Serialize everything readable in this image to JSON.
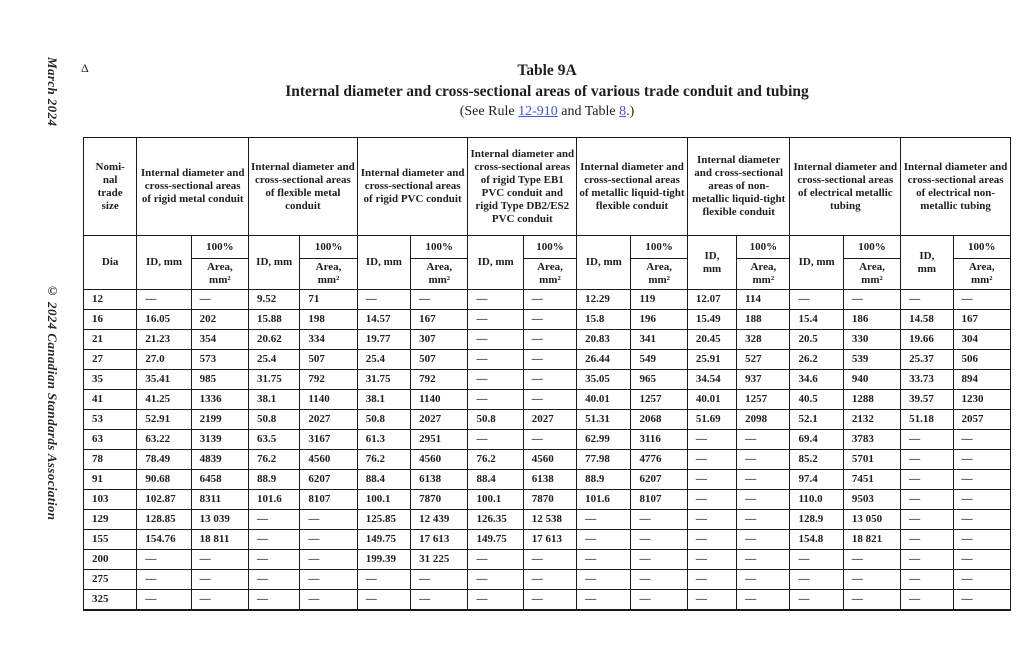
{
  "margins": {
    "date_text": "March 2024",
    "copyright_text": "© 2024 Canadian Standards Association",
    "delta_marker": "Δ"
  },
  "title": {
    "line1": "Table 9A",
    "line2": "Internal diameter and cross-sectional areas of various trade conduit and tubing",
    "see_prefix": "(See Rule ",
    "rule_link": "12-910",
    "see_middle": " and Table ",
    "table_link": "8",
    "see_suffix": ".)"
  },
  "colors": {
    "link": "#4453dd",
    "text": "#1f1f1f",
    "border": "#1a1a1a",
    "background": "#ffffff"
  },
  "table": {
    "corner_header": "Nomi-\nnal\ntrade\nsize",
    "dia_header": "Dia",
    "pct_label": "100%",
    "area_label": "Area,\nmm²",
    "groups": [
      {
        "label": "Internal diameter and cross-sectional areas of rigid metal conduit",
        "id_label": "ID, mm"
      },
      {
        "label": "Internal diameter and cross-sectional areas of flexible metal conduit",
        "id_label": "ID, mm"
      },
      {
        "label": "Internal diameter and cross-sectional areas of rigid PVC conduit",
        "id_label": "ID, mm"
      },
      {
        "label": "Internal diameter and cross-sectional areas of rigid Type EB1 PVC conduit and rigid Type DB2/ES2 PVC conduit",
        "id_label": "ID, mm"
      },
      {
        "label": "Internal diameter and cross-sectional areas of metallic liquid-tight flexible conduit",
        "id_label": "ID, mm"
      },
      {
        "label": "Internal diameter and cross-sectional areas of non-metallic liquid-tight flexible conduit",
        "id_label": "ID,\nmm"
      },
      {
        "label": "Internal diameter and cross-sectional areas of electrical metallic tubing",
        "id_label": "ID, mm"
      },
      {
        "label": "Internal diameter and cross-sectional areas of electrical non-metallic tubing",
        "id_label": "ID,\nmm"
      }
    ],
    "rows": [
      {
        "dia": "12",
        "cells": [
          "—",
          "—",
          "9.52",
          "71",
          "—",
          "—",
          "—",
          "—",
          "12.29",
          "119",
          "12.07",
          "114",
          "—",
          "—",
          "—",
          "—"
        ]
      },
      {
        "dia": "16",
        "cells": [
          "16.05",
          "202",
          "15.88",
          "198",
          "14.57",
          "167",
          "—",
          "—",
          "15.8",
          "196",
          "15.49",
          "188",
          "15.4",
          "186",
          "14.58",
          "167"
        ]
      },
      {
        "dia": "21",
        "cells": [
          "21.23",
          "354",
          "20.62",
          "334",
          "19.77",
          "307",
          "—",
          "—",
          "20.83",
          "341",
          "20.45",
          "328",
          "20.5",
          "330",
          "19.66",
          "304"
        ]
      },
      {
        "dia": "27",
        "cells": [
          "27.0",
          "573",
          "25.4",
          "507",
          "25.4",
          "507",
          "—",
          "—",
          "26.44",
          "549",
          "25.91",
          "527",
          "26.2",
          "539",
          "25.37",
          "506"
        ]
      },
      {
        "dia": "35",
        "cells": [
          "35.41",
          "985",
          "31.75",
          "792",
          "31.75",
          "792",
          "—",
          "—",
          "35.05",
          "965",
          "34.54",
          "937",
          "34.6",
          "940",
          "33.73",
          "894"
        ]
      },
      {
        "dia": "41",
        "cells": [
          "41.25",
          "1336",
          "38.1",
          "1140",
          "38.1",
          "1140",
          "—",
          "—",
          "40.01",
          "1257",
          "40.01",
          "1257",
          "40.5",
          "1288",
          "39.57",
          "1230"
        ]
      },
      {
        "dia": "53",
        "cells": [
          "52.91",
          "2199",
          "50.8",
          "2027",
          "50.8",
          "2027",
          "50.8",
          "2027",
          "51.31",
          "2068",
          "51.69",
          "2098",
          "52.1",
          "2132",
          "51.18",
          "2057"
        ]
      },
      {
        "dia": "63",
        "cells": [
          "63.22",
          "3139",
          "63.5",
          "3167",
          "61.3",
          "2951",
          "—",
          "—",
          "62.99",
          "3116",
          "—",
          "—",
          "69.4",
          "3783",
          "—",
          "—"
        ]
      },
      {
        "dia": "78",
        "cells": [
          "78.49",
          "4839",
          "76.2",
          "4560",
          "76.2",
          "4560",
          "76.2",
          "4560",
          "77.98",
          "4776",
          "—",
          "—",
          "85.2",
          "5701",
          "—",
          "—"
        ]
      },
      {
        "dia": "91",
        "cells": [
          "90.68",
          "6458",
          "88.9",
          "6207",
          "88.4",
          "6138",
          "88.4",
          "6138",
          "88.9",
          "6207",
          "—",
          "—",
          "97.4",
          "7451",
          "—",
          "—"
        ]
      },
      {
        "dia": "103",
        "cells": [
          "102.87",
          "8311",
          "101.6",
          "8107",
          "100.1",
          "7870",
          "100.1",
          "7870",
          "101.6",
          "8107",
          "—",
          "—",
          "110.0",
          "9503",
          "—",
          "—"
        ]
      },
      {
        "dia": "129",
        "cells": [
          "128.85",
          "13 039",
          "—",
          "—",
          "125.85",
          "12 439",
          "126.35",
          "12 538",
          "—",
          "—",
          "—",
          "—",
          "128.9",
          "13 050",
          "—",
          "—"
        ]
      },
      {
        "dia": "155",
        "cells": [
          "154.76",
          "18 811",
          "—",
          "—",
          "149.75",
          "17 613",
          "149.75",
          "17 613",
          "—",
          "—",
          "—",
          "—",
          "154.8",
          "18 821",
          "—",
          "—"
        ]
      },
      {
        "dia": "200",
        "cells": [
          "—",
          "—",
          "—",
          "—",
          "199.39",
          "31 225",
          "—",
          "—",
          "—",
          "—",
          "—",
          "—",
          "—",
          "—",
          "—",
          "—"
        ]
      },
      {
        "dia": "275",
        "cells": [
          "—",
          "—",
          "—",
          "—",
          "—",
          "—",
          "—",
          "—",
          "—",
          "—",
          "—",
          "—",
          "—",
          "—",
          "—",
          "—"
        ]
      },
      {
        "dia": "325",
        "cells": [
          "—",
          "—",
          "—",
          "—",
          "—",
          "—",
          "—",
          "—",
          "—",
          "—",
          "—",
          "—",
          "—",
          "—",
          "—",
          "—"
        ]
      }
    ]
  }
}
